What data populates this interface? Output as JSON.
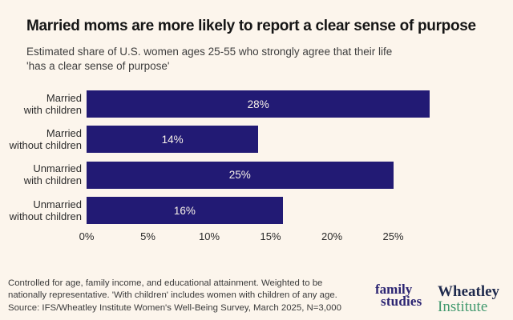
{
  "header": {
    "title": "Married moms are more likely to report a clear sense of purpose",
    "subtitle_lines": [
      "Estimated share of U.S. women ages 25-55 who strongly agree that their life",
      "'has a clear sense of purpose'"
    ]
  },
  "chart_data": {
    "type": "bar",
    "orientation": "horizontal",
    "title": "Married moms are more likely to report a clear sense of purpose",
    "subtitle": "Estimated share of U.S. women ages 25-55 who strongly agree that their life 'has a clear sense of purpose'",
    "categories": [
      "Married with children",
      "Married without children",
      "Unmarried with children",
      "Unmarried without children"
    ],
    "category_label_lines": [
      [
        "Married",
        "with children"
      ],
      [
        "Married",
        "without children"
      ],
      [
        "Unmarried",
        "with children"
      ],
      [
        "Unmarried",
        "without children"
      ]
    ],
    "values": [
      28,
      14,
      25,
      16
    ],
    "value_labels": [
      "28%",
      "14%",
      "25%",
      "16%"
    ],
    "x_ticks": [
      {
        "value": 0,
        "label": "0%"
      },
      {
        "value": 5,
        "label": "5%"
      },
      {
        "value": 10,
        "label": "10%"
      },
      {
        "value": 15,
        "label": "15%"
      },
      {
        "value": 20,
        "label": "20%"
      },
      {
        "value": 25,
        "label": "25%"
      }
    ],
    "xlim": [
      0,
      28.2
    ],
    "unit": "percent",
    "grid": false,
    "legend": false,
    "bar_color": "#221A74",
    "value_label_color": "#F8F2E9"
  },
  "footnote": {
    "lines": [
      "Controlled for age, family income, and educational attainment. Weighted to be",
      "nationally representative. 'With children' includes women with children of any age.",
      "Source: IFS/Wheatley Institute Women's Well-Being Survey, March 2025, N=3,000"
    ]
  },
  "logos": {
    "family_studies": {
      "line1": "family",
      "line2": "studies",
      "color": "#2B2472"
    },
    "wheatley": {
      "line1": "Wheatley",
      "line2": "Institute",
      "line1_color": "#1F2A4D",
      "line2_color": "#41996E"
    }
  },
  "colors": {
    "background": "#FCF5EC"
  }
}
